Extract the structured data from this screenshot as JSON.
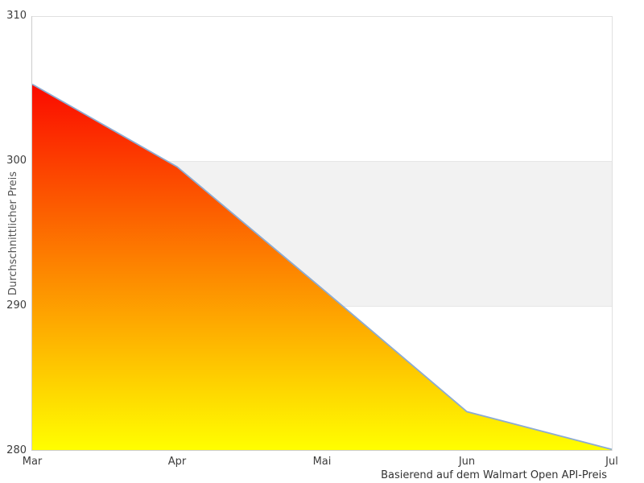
{
  "chart_data": {
    "type": "area",
    "title": "",
    "x": [
      "Mar",
      "Apr",
      "Mai",
      "Jun",
      "Jul"
    ],
    "values": [
      305.3,
      299.6,
      291.2,
      282.7,
      280.1
    ],
    "xlabel": "Basierend auf dem Walmart Open API-Preis",
    "ylabel": "Durchschnittlicher Preis",
    "y_ticks": [
      310,
      300,
      290,
      280
    ],
    "ylim": [
      280,
      310
    ],
    "legend": "none",
    "grid": "horizontal-lines-with-alternate-band",
    "band": {
      "from": 290,
      "to": 300,
      "color": "#f2f2f2"
    },
    "colors": {
      "area_gradient_top": "#fb0a00",
      "area_gradient_bottom": "#ffff00",
      "line": "#8cabd2",
      "inner_gridline": "#e6e6e6",
      "outer_border": "#e0e0e0",
      "axis_line": "#cccccc"
    }
  }
}
